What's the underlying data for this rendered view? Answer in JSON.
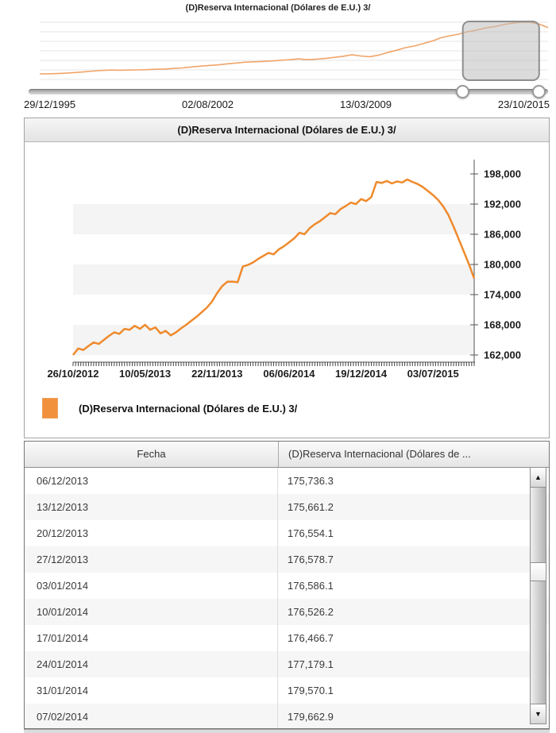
{
  "overview": {
    "title": "(D)Reserva Internacional (Dólares de E.U.) 3/",
    "date_labels": [
      "29/12/1995",
      "02/08/2002",
      "13/03/2009",
      "23/10/2015"
    ]
  },
  "panel": {
    "title": "(D)Reserva Internacional (Dólares de E.U.) 3/"
  },
  "legend": {
    "label": "(D)Reserva Internacional (Dólares de E.U.) 3/",
    "swatch_color": "#F2913D"
  },
  "chart_data": [
    {
      "id": "overview-range-chart",
      "type": "line",
      "title": "(D)Reserva Internacional (Dólares de E.U.) 3/",
      "x_tick_labels": [
        "29/12/1995",
        "02/08/2002",
        "13/03/2009",
        "23/10/2015"
      ],
      "x_range_dates": [
        "29/12/1995",
        "23/10/2015"
      ],
      "line_color": "#f2a468",
      "grid": "horizontal",
      "selected_range_frac": [
        0.836,
        0.983
      ],
      "values_usd_millions": [
        16800,
        17200,
        17800,
        19400,
        21500,
        24000,
        26500,
        28800,
        30100,
        29500,
        30200,
        30700,
        31500,
        32800,
        33600,
        35500,
        37500,
        40900,
        43500,
        46000,
        48000,
        51500,
        54500,
        57400,
        58800,
        60000,
        61500,
        64000,
        66000,
        68700,
        66200,
        67700,
        70500,
        74000,
        78000,
        83500,
        79000,
        76500,
        82000,
        90800,
        99000,
        108000,
        113600,
        122000,
        131000,
        142500,
        149500,
        155000,
        163500,
        169000,
        176500,
        181000,
        188000,
        193000,
        196400,
        196000,
        190000,
        177200
      ]
    },
    {
      "id": "detail-chart",
      "type": "line",
      "title": "(D)Reserva Internacional (Dólares de E.U.) 3/",
      "x_tick_labels": [
        "26/10/2012",
        "10/05/2013",
        "22/11/2013",
        "06/06/2014",
        "19/12/2014",
        "03/07/2015"
      ],
      "y_tick_labels": [
        "198,000",
        "192,000",
        "186,000",
        "180,000",
        "174,000",
        "168,000",
        "162,000"
      ],
      "y_tick_values": [
        198000,
        192000,
        186000,
        180000,
        174000,
        168000,
        162000
      ],
      "ylim": [
        160600,
        200900
      ],
      "grid": "horizontal-bands",
      "legend_position": "bottom-left",
      "line_color": "#ef8a2c",
      "series": [
        {
          "name": "(D)Reserva Internacional (Dólares de E.U.) 3/",
          "values": [
            162000,
            163300,
            163000,
            163800,
            164500,
            164200,
            165000,
            165800,
            166500,
            166200,
            167200,
            167000,
            167800,
            167200,
            168000,
            167000,
            167500,
            166300,
            166800,
            165900,
            166500,
            167300,
            168000,
            168800,
            169600,
            170500,
            171400,
            172600,
            174300,
            175700,
            176550,
            176590,
            176470,
            179570,
            179900,
            180400,
            181100,
            181700,
            182300,
            182000,
            183000,
            183600,
            184400,
            185200,
            186300,
            186000,
            187200,
            188000,
            188600,
            189400,
            190200,
            190000,
            191000,
            191600,
            192300,
            192000,
            193000,
            192600,
            193400,
            196400,
            196200,
            196600,
            196100,
            196500,
            196300,
            196900,
            196400,
            196000,
            195400,
            194600,
            193800,
            192800,
            191500,
            189800,
            187500,
            185000,
            182500,
            180000,
            177200
          ]
        }
      ]
    }
  ],
  "table": {
    "columns": [
      "Fecha",
      "(D)Reserva Internacional (Dólares de ..."
    ],
    "rows": [
      [
        "06/12/2013",
        "175,736.3"
      ],
      [
        "13/12/2013",
        "175,661.2"
      ],
      [
        "20/12/2013",
        "176,554.1"
      ],
      [
        "27/12/2013",
        "176,578.7"
      ],
      [
        "03/01/2014",
        "176,586.1"
      ],
      [
        "10/01/2014",
        "176,526.2"
      ],
      [
        "17/01/2014",
        "176,466.7"
      ],
      [
        "24/01/2014",
        "177,179.1"
      ],
      [
        "31/01/2014",
        "179,570.1"
      ],
      [
        "07/02/2014",
        "179,662.9"
      ]
    ]
  },
  "scrollbar": {
    "up_glyph": "▲",
    "down_glyph": "▼"
  }
}
